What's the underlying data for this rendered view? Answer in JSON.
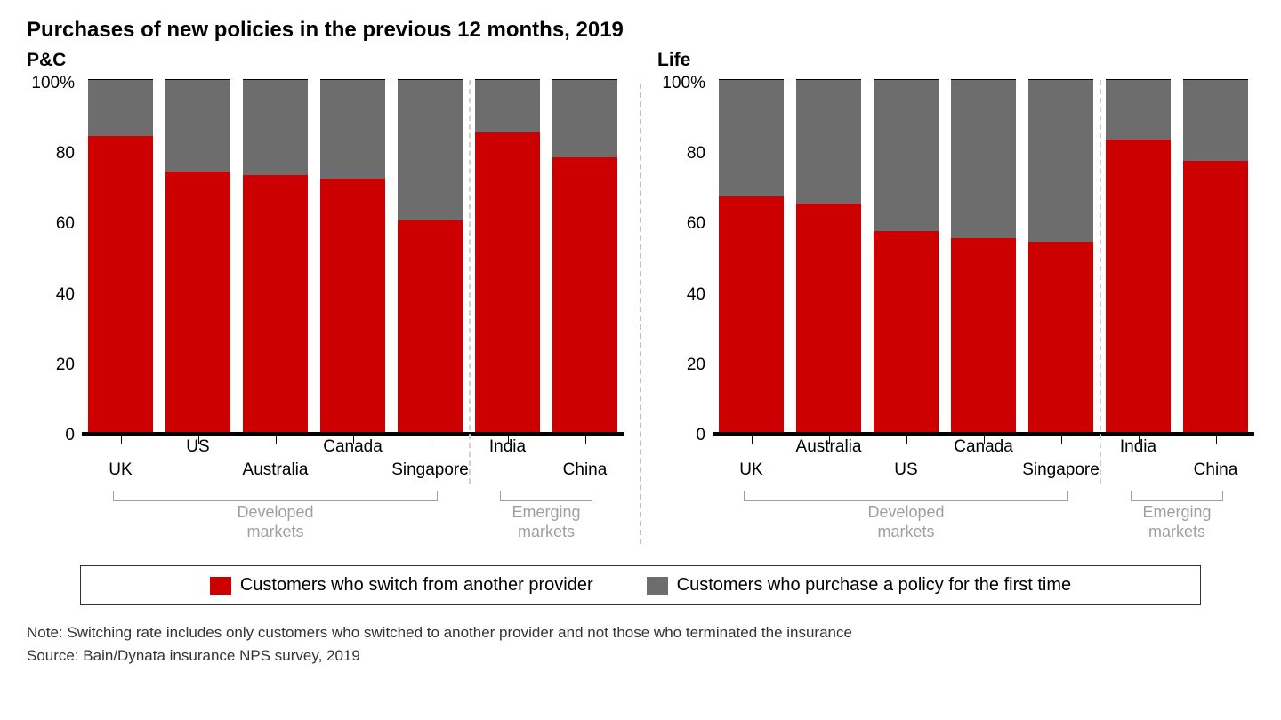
{
  "title": "Purchases of new policies in the previous 12 months, 2019",
  "colors": {
    "switch": "#cc0000",
    "first": "#6d6d6d",
    "axis": "#000000",
    "groupLabel": "#9f9f9f",
    "divider": "#bfbfbf",
    "innerDivider": "#d0d0d0",
    "background": "#ffffff",
    "legendBorder": "#333333"
  },
  "chart": {
    "type": "stacked-bar",
    "y": {
      "max": 100,
      "ticks": [
        0,
        20,
        40,
        60,
        80,
        100
      ],
      "topLabel": "100%"
    },
    "barHeightPx": 396,
    "innerDividerHeightPx": 454,
    "groups": {
      "dev": "Developed\nmarkets",
      "emg": "Emerging\nmarkets",
      "devCount": 5,
      "emgCount": 2
    },
    "font": {
      "title_pt": 24,
      "subtitle_pt": 21,
      "tick_pt": 19,
      "xlabel_pt": 19,
      "group_pt": 18,
      "legend_pt": 20,
      "note_pt": 17
    }
  },
  "panels": [
    {
      "subtitle": "P&C",
      "bars": [
        {
          "country": "UK",
          "switch": 84,
          "first": 16,
          "label_row": "low"
        },
        {
          "country": "US",
          "switch": 74,
          "first": 26,
          "label_row": "high"
        },
        {
          "country": "Australia",
          "switch": 73,
          "first": 27,
          "label_row": "low"
        },
        {
          "country": "Canada",
          "switch": 72,
          "first": 28,
          "label_row": "high"
        },
        {
          "country": "Singapore",
          "switch": 60,
          "first": 40,
          "label_row": "low"
        },
        {
          "country": "India",
          "switch": 85,
          "first": 15,
          "label_row": "high"
        },
        {
          "country": "China",
          "switch": 78,
          "first": 22,
          "label_row": "low"
        }
      ]
    },
    {
      "subtitle": "Life",
      "bars": [
        {
          "country": "UK",
          "switch": 67,
          "first": 33,
          "label_row": "low"
        },
        {
          "country": "Australia",
          "switch": 65,
          "first": 35,
          "label_row": "high"
        },
        {
          "country": "US",
          "switch": 57,
          "first": 43,
          "label_row": "low"
        },
        {
          "country": "Canada",
          "switch": 55,
          "first": 45,
          "label_row": "high"
        },
        {
          "country": "Singapore",
          "switch": 54,
          "first": 46,
          "label_row": "low"
        },
        {
          "country": "India",
          "switch": 83,
          "first": 17,
          "label_row": "high"
        },
        {
          "country": "China",
          "switch": 77,
          "first": 23,
          "label_row": "low"
        }
      ]
    }
  ],
  "legend": {
    "switch": "Customers who switch from another provider",
    "first": "Customers who purchase a policy for the first time"
  },
  "note": "Note: Switching rate includes only customers who switched to another provider and not those who terminated the insurance",
  "source": "Source: Bain/Dynata insurance NPS survey, 2019"
}
